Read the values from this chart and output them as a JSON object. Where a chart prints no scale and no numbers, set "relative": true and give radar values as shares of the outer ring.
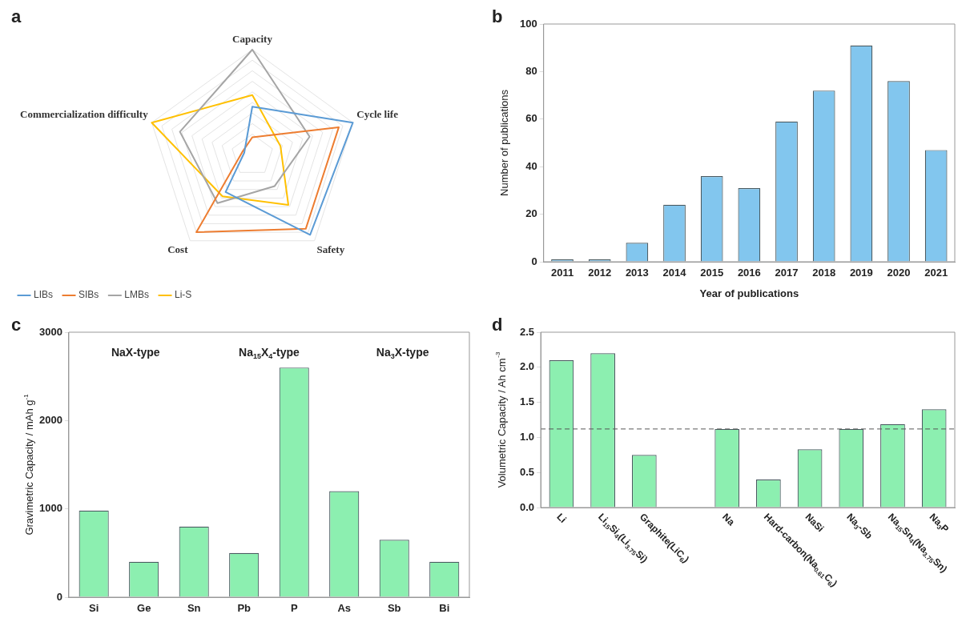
{
  "chart_data": [
    {
      "type": "radar",
      "title": "a",
      "categories": [
        "Capacity",
        "Cycle life",
        "Safety",
        "Cost",
        "Commercialization difficulty"
      ],
      "relative": true,
      "grid": true,
      "marker": "none",
      "legend": "bottom left",
      "series": [
        {
          "name": "LIBs",
          "color": "#5b9bd5",
          "values": [
            0.46,
            1.0,
            0.93,
            0.43,
            0.08
          ]
        },
        {
          "name": "SIBs",
          "color": "#ed7d31",
          "values": [
            0.17,
            0.86,
            0.86,
            0.9,
            0.1
          ]
        },
        {
          "name": "LMBs",
          "color": "#a5a5a5",
          "values": [
            1.0,
            0.57,
            0.36,
            0.56,
            0.72
          ]
        },
        {
          "name": "Li-S",
          "color": "#ffc000",
          "values": [
            0.57,
            0.28,
            0.58,
            0.48,
            1.0
          ]
        }
      ]
    },
    {
      "type": "bar",
      "title": "b",
      "xlabel": "Year of publications",
      "ylabel": "Number of publications",
      "categories": [
        "2011",
        "2012",
        "2013",
        "2014",
        "2015",
        "2016",
        "2017",
        "2018",
        "2019",
        "2020",
        "2021"
      ],
      "values": [
        1,
        1,
        8,
        24,
        36,
        31,
        59,
        72,
        91,
        76,
        47
      ],
      "color": "#82c6ee",
      "ylim": [
        0,
        100
      ],
      "yticks": [
        0,
        20,
        40,
        60,
        80,
        100
      ]
    },
    {
      "type": "bar",
      "title": "c",
      "ylabel": "Gravimetric Capacity / mAh g$^{-1}$",
      "categories": [
        "Si",
        "Ge",
        "Sn",
        "Pb",
        "P",
        "As",
        "Sb",
        "Bi"
      ],
      "values": [
        980,
        400,
        800,
        500,
        2600,
        1200,
        650,
        400
      ],
      "color": "#8cefb0",
      "ylim": [
        0,
        3000
      ],
      "yticks": [
        0,
        1000,
        2000,
        3000
      ],
      "annotations": [
        "NaX-type",
        "Na$_{15}$X$_{4}$-type",
        "Na$_{3}$X-type"
      ]
    },
    {
      "type": "bar",
      "title": "d",
      "ylabel": "Volumetric Capacity / Ah cm$^{-3}$",
      "categories": [
        "Li",
        "Li$_{15}$Si$_{4}$(Li$_{3.75}$Si)",
        "Graphite(LiC$_{6}$)",
        null,
        "Na",
        "Hard-carbon(Na$_{0.61}$C$_{6}$)",
        "NaSi",
        "Na$_{3}$-Sb",
        "Na$_{15}$Sn$_{4}$(Na$_{3.75}$Sn)",
        "Na$_{3}$P"
      ],
      "values": [
        2.1,
        2.2,
        0.75,
        null,
        1.12,
        0.4,
        0.83,
        1.12,
        1.19,
        1.4
      ],
      "color": "#8cefb0",
      "ylim": [
        0,
        2.5
      ],
      "yticks": [
        {
          "value": 0,
          "label": "0.0"
        },
        {
          "value": 0.5,
          "label": "0.5"
        },
        {
          "value": 1,
          "label": "1.0"
        },
        {
          "value": 1.5,
          "label": "1.5"
        },
        {
          "value": 2,
          "label": "2.0"
        },
        {
          "value": 2.5,
          "label": "2.5"
        }
      ],
      "ref_lines": [
        {
          "axis": "y",
          "value": 1.12,
          "color": "#555555",
          "line_style": "dashed"
        }
      ]
    }
  ]
}
